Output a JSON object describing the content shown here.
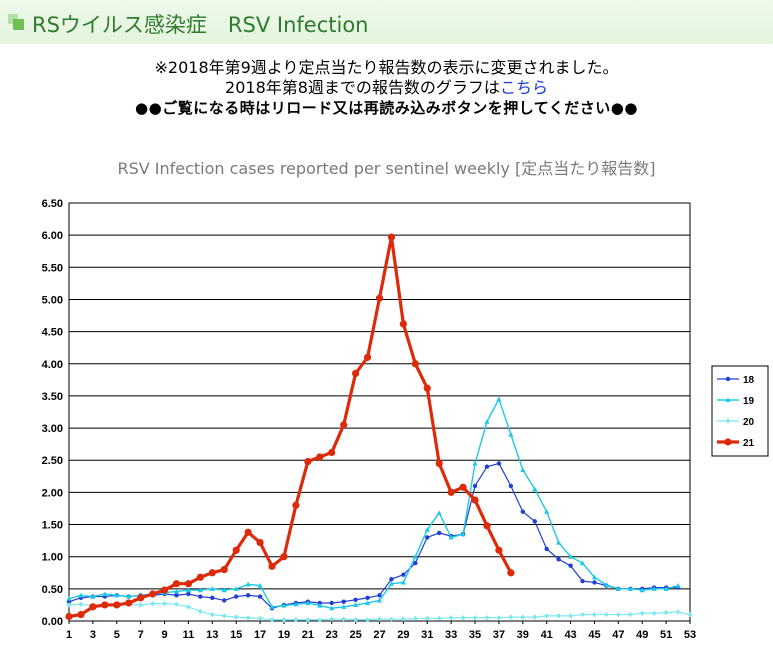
{
  "header": {
    "title": "RSウイルス感染症　RSV Infection",
    "icon": "green-squares-icon"
  },
  "notice": {
    "line1": "※2018年第9週より定点当たり報告数の表示に変更されました。",
    "line2_prefix": "2018年第8週までの報告数のグラフは",
    "line2_link": "こちら",
    "line3": "●●ご覧になる時はリロード又は再読み込みボタンを押してください●●"
  },
  "colors": {
    "s18": "#1f3fd6",
    "s19": "#1ec8e6",
    "s20": "#7ee8f0",
    "s21": "#dd2a0a",
    "header_bg": "#e3f4de",
    "title_green": "#2f7a2f"
  },
  "chart_data": {
    "type": "line",
    "title": "RSV Infection cases reported per sentinel weekly [定点当たり報告数]",
    "xlabel": "",
    "ylabel": "",
    "ylim": [
      0,
      6.5
    ],
    "xlim": [
      1,
      53
    ],
    "grid": true,
    "legend_position": "right",
    "y_ticks": [
      "0.00",
      "0.50",
      "1.00",
      "1.50",
      "2.00",
      "2.50",
      "3.00",
      "3.50",
      "4.00",
      "4.50",
      "5.00",
      "5.50",
      "6.00",
      "6.50"
    ],
    "x_ticks": [
      "1",
      "3",
      "5",
      "7",
      "9",
      "11",
      "13",
      "15",
      "17",
      "19",
      "21",
      "23",
      "25",
      "27",
      "29",
      "31",
      "33",
      "35",
      "37",
      "39",
      "41",
      "43",
      "45",
      "47",
      "49",
      "51",
      "53"
    ],
    "series": [
      {
        "name": "18",
        "x": [
          1,
          2,
          3,
          4,
          5,
          6,
          7,
          8,
          9,
          10,
          11,
          12,
          13,
          14,
          15,
          16,
          17,
          18,
          19,
          20,
          21,
          22,
          23,
          24,
          25,
          26,
          27,
          28,
          29,
          30,
          31,
          32,
          33,
          34,
          35,
          36,
          37,
          38,
          39,
          40,
          41,
          42,
          43,
          44,
          45,
          46,
          47,
          48,
          49,
          50,
          51,
          52
        ],
        "values": [
          0.3,
          0.36,
          0.38,
          0.38,
          0.4,
          0.38,
          0.4,
          0.4,
          0.42,
          0.4,
          0.42,
          0.38,
          0.36,
          0.32,
          0.38,
          0.4,
          0.38,
          0.2,
          0.25,
          0.28,
          0.3,
          0.28,
          0.28,
          0.3,
          0.33,
          0.36,
          0.4,
          0.65,
          0.72,
          0.9,
          1.3,
          1.37,
          1.32,
          1.35,
          2.1,
          2.4,
          2.45,
          2.1,
          1.7,
          1.55,
          1.12,
          0.96,
          0.86,
          0.62,
          0.6,
          0.55,
          0.5,
          0.5,
          0.5,
          0.52,
          0.52,
          0.52
        ]
      },
      {
        "name": "19",
        "x": [
          1,
          2,
          3,
          4,
          5,
          6,
          7,
          8,
          9,
          10,
          11,
          12,
          13,
          14,
          15,
          16,
          17,
          18,
          19,
          20,
          21,
          22,
          23,
          24,
          25,
          26,
          27,
          28,
          29,
          30,
          31,
          32,
          33,
          34,
          35,
          36,
          37,
          38,
          39,
          40,
          41,
          42,
          43,
          44,
          45,
          46,
          47,
          48,
          49,
          50,
          51,
          52
        ],
        "values": [
          0.35,
          0.4,
          0.38,
          0.42,
          0.4,
          0.38,
          0.4,
          0.42,
          0.44,
          0.46,
          0.48,
          0.48,
          0.5,
          0.48,
          0.5,
          0.57,
          0.55,
          0.22,
          0.24,
          0.26,
          0.28,
          0.24,
          0.2,
          0.22,
          0.25,
          0.28,
          0.32,
          0.58,
          0.6,
          1.0,
          1.42,
          1.68,
          1.3,
          1.35,
          2.45,
          3.1,
          3.45,
          2.9,
          2.35,
          2.05,
          1.7,
          1.22,
          1.0,
          0.9,
          0.68,
          0.56,
          0.5,
          0.5,
          0.48,
          0.5,
          0.5,
          0.55
        ]
      },
      {
        "name": "20",
        "x": [
          1,
          2,
          3,
          4,
          5,
          6,
          7,
          8,
          9,
          10,
          11,
          12,
          13,
          14,
          15,
          16,
          17,
          18,
          19,
          20,
          21,
          22,
          23,
          24,
          25,
          26,
          27,
          28,
          29,
          30,
          31,
          32,
          33,
          34,
          35,
          36,
          37,
          38,
          39,
          40,
          41,
          42,
          43,
          44,
          45,
          46,
          47,
          48,
          49,
          50,
          51,
          52,
          53
        ],
        "values": [
          0.25,
          0.26,
          0.24,
          0.26,
          0.25,
          0.26,
          0.25,
          0.27,
          0.27,
          0.26,
          0.22,
          0.15,
          0.1,
          0.08,
          0.06,
          0.05,
          0.04,
          0.02,
          0.02,
          0.02,
          0.02,
          0.02,
          0.03,
          0.03,
          0.02,
          0.02,
          0.03,
          0.03,
          0.03,
          0.04,
          0.04,
          0.04,
          0.05,
          0.05,
          0.05,
          0.05,
          0.05,
          0.06,
          0.06,
          0.06,
          0.08,
          0.08,
          0.08,
          0.1,
          0.1,
          0.1,
          0.1,
          0.1,
          0.12,
          0.12,
          0.13,
          0.14,
          0.1
        ]
      },
      {
        "name": "21",
        "x": [
          1,
          2,
          3,
          4,
          5,
          6,
          7,
          8,
          9,
          10,
          11,
          12,
          13,
          14,
          15,
          16,
          17,
          18,
          19,
          20,
          21,
          22,
          23,
          24,
          25,
          26,
          27,
          28,
          29,
          30,
          31,
          32,
          33,
          34,
          35,
          36,
          37,
          38
        ],
        "values": [
          0.07,
          0.1,
          0.22,
          0.25,
          0.25,
          0.28,
          0.36,
          0.42,
          0.48,
          0.58,
          0.58,
          0.68,
          0.75,
          0.8,
          1.1,
          1.38,
          1.22,
          0.85,
          1.0,
          1.8,
          2.48,
          2.55,
          2.62,
          3.05,
          3.85,
          4.1,
          5.02,
          5.97,
          4.62,
          4.0,
          3.62,
          2.45,
          2.0,
          2.08,
          1.88,
          1.48,
          1.1,
          0.75
        ]
      }
    ]
  }
}
